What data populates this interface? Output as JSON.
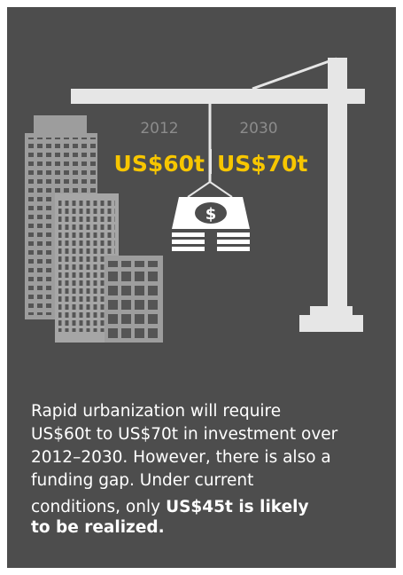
{
  "graphic": {
    "years": [
      "2012",
      "2030"
    ],
    "amounts": [
      "US$60t",
      "US$70t"
    ],
    "bill_symbol": "$"
  },
  "text": {
    "lines": [
      "Rapid urbanization will require",
      "US$60t to US$70t in investment over",
      "2012–2030. However, there is also a",
      "funding gap. Under current"
    ],
    "last_line_start": "conditions, only",
    "bold_lines": [
      "US$45t is likely",
      "to be realized."
    ]
  }
}
